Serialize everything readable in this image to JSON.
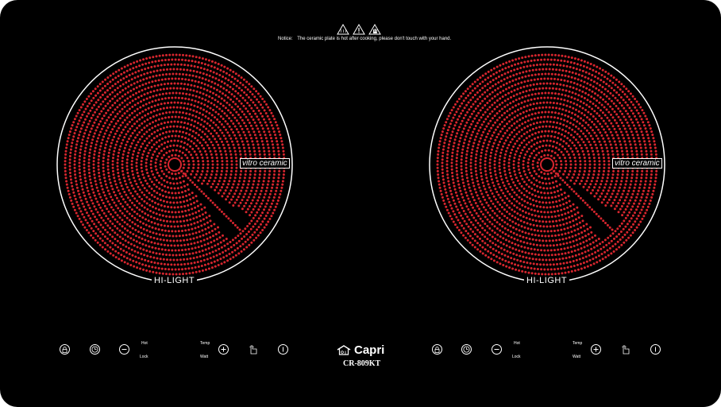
{
  "notice": {
    "label": "Notice:",
    "text": "The ceramic plate is hot after cooking, please don't touch with your hand.",
    "icons": [
      "hot-surface-warning-icon",
      "caution-warning-icon",
      "no-touch-warning-icon"
    ]
  },
  "zones": [
    {
      "tag": "vitro ceramic",
      "brand": "HI-LIGHT"
    },
    {
      "tag": "vitro ceramic",
      "brand": "HI-LIGHT"
    }
  ],
  "controls": {
    "left": {
      "icons": [
        "lock-icon",
        "timer-icon",
        "minus-icon",
        "plus-icon",
        "function-icon",
        "power-icon"
      ],
      "hot_label": "Hot",
      "lock_label": "Lock",
      "temp_label": "Temp",
      "watt_label": "Watt"
    },
    "right": {
      "icons": [
        "lock-icon",
        "timer-icon",
        "minus-icon",
        "plus-icon",
        "function-icon",
        "power-icon"
      ],
      "hot_label": "Hot",
      "lock_label": "Lock",
      "temp_label": "Temp",
      "watt_label": "Watt"
    }
  },
  "brand": {
    "name": "Capri",
    "model": "CR-809KT",
    "logo_icon": "house-logo-icon"
  },
  "colors": {
    "surface": "#000000",
    "heating_element": "#d7262e",
    "print": "#ffffff"
  }
}
